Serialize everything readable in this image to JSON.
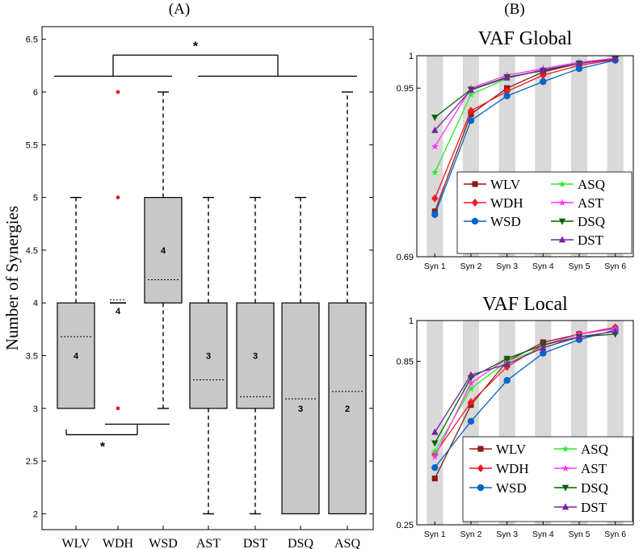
{
  "panel_labels": {
    "a": "(A)",
    "b": "(B)"
  },
  "chart_data": [
    {
      "type": "box",
      "title": "(A)",
      "xlabel": "",
      "ylabel": "Number of Synergies",
      "ylim": [
        1.85,
        6.62
      ],
      "yticks": [
        "2",
        "2.5",
        "3",
        "3.5",
        "4",
        "4.5",
        "5",
        "5.5",
        "6",
        "6.5"
      ],
      "categories": [
        "WLV",
        "WDH",
        "WSD",
        "AST",
        "DST",
        "DSQ",
        "ASQ"
      ],
      "boxes": [
        {
          "q1": 3,
          "q3": 4,
          "whisker_low": 3,
          "whisker_high": 5,
          "mean": 3.68,
          "median_label": "4",
          "outliers": []
        },
        {
          "q1": 4,
          "q3": 4,
          "whisker_low": 4,
          "whisker_high": 4,
          "mean": 4.03,
          "median_label": "4",
          "outliers": [
            6,
            5,
            3
          ]
        },
        {
          "q1": 4,
          "q3": 5,
          "whisker_low": 3,
          "whisker_high": 6,
          "mean": 4.22,
          "median_label": "4",
          "outliers": []
        },
        {
          "q1": 3,
          "q3": 4,
          "whisker_low": 2,
          "whisker_high": 5,
          "mean": 3.27,
          "median_label": "3",
          "outliers": []
        },
        {
          "q1": 3,
          "q3": 4,
          "whisker_low": 2,
          "whisker_high": 5,
          "mean": 3.11,
          "median_label": "3",
          "outliers": []
        },
        {
          "q1": 2,
          "q3": 4,
          "whisker_low": 2,
          "whisker_high": 5,
          "mean": 3.09,
          "median_label": "3",
          "outliers": []
        },
        {
          "q1": 2,
          "q3": 4,
          "whisker_low": 2,
          "whisker_high": 6,
          "mean": 3.16,
          "median_label": "2",
          "outliers": []
        }
      ],
      "significance": [
        {
          "label": "*",
          "groups_a": [
            "WLV",
            "WDH",
            "WSD"
          ],
          "groups_b": [
            "AST",
            "DST",
            "DSQ",
            "ASQ"
          ],
          "level": 6.35
        },
        {
          "label": "*",
          "groups_a": [
            "WLV",
            "WDH"
          ],
          "groups_b": [
            "WSD"
          ],
          "level": 2.75
        }
      ]
    },
    {
      "type": "line",
      "title": "VAF Global",
      "ylim": [
        0.69,
        1.0
      ],
      "yticks": [
        "0.69",
        "0.95",
        "1"
      ],
      "categories": [
        "Syn 1",
        "Syn 2",
        "Syn 3",
        "Syn 4",
        "Syn 5",
        "Syn 6"
      ],
      "series": [
        {
          "name": "WLV",
          "values": [
            0.76,
            0.91,
            0.95,
            0.975,
            0.988,
            0.995
          ]
        },
        {
          "name": "WDH",
          "values": [
            0.78,
            0.915,
            0.945,
            0.97,
            0.985,
            0.994
          ]
        },
        {
          "name": "WSD",
          "values": [
            0.755,
            0.9,
            0.938,
            0.96,
            0.98,
            0.993
          ]
        },
        {
          "name": "ASQ",
          "values": [
            0.82,
            0.94,
            0.965,
            0.978,
            0.989,
            0.995
          ]
        },
        {
          "name": "AST",
          "values": [
            0.86,
            0.95,
            0.97,
            0.98,
            0.99,
            0.996
          ]
        },
        {
          "name": "DSQ",
          "values": [
            0.905,
            0.948,
            0.967,
            0.977,
            0.988,
            0.995
          ]
        },
        {
          "name": "DST",
          "values": [
            0.885,
            0.947,
            0.966,
            0.978,
            0.988,
            0.995
          ]
        }
      ]
    },
    {
      "type": "line",
      "title": "VAF Local",
      "ylim": [
        0.25,
        1.0
      ],
      "yticks": [
        "0.25",
        "0.85",
        "1"
      ],
      "categories": [
        "Syn 1",
        "Syn 2",
        "Syn 3",
        "Syn 4",
        "Syn 5",
        "Syn 6"
      ],
      "series": [
        {
          "name": "WLV",
          "values": [
            0.42,
            0.69,
            0.85,
            0.92,
            0.95,
            0.97
          ]
        },
        {
          "name": "WDH",
          "values": [
            0.51,
            0.7,
            0.83,
            0.91,
            0.95,
            0.975
          ]
        },
        {
          "name": "WSD",
          "values": [
            0.46,
            0.63,
            0.78,
            0.88,
            0.93,
            0.965
          ]
        },
        {
          "name": "ASQ",
          "values": [
            0.52,
            0.75,
            0.85,
            0.9,
            0.94,
            0.96
          ]
        },
        {
          "name": "AST",
          "values": [
            0.5,
            0.77,
            0.86,
            0.91,
            0.95,
            0.97
          ]
        },
        {
          "name": "DSQ",
          "values": [
            0.55,
            0.79,
            0.86,
            0.91,
            0.94,
            0.95
          ]
        },
        {
          "name": "DST",
          "values": [
            0.59,
            0.8,
            0.84,
            0.9,
            0.94,
            0.96
          ]
        }
      ]
    }
  ],
  "series_styles": {
    "WLV": {
      "color": "#8b1a1a",
      "marker": "square"
    },
    "WDH": {
      "color": "#ee1c1c",
      "marker": "diamond"
    },
    "WSD": {
      "color": "#0064c8",
      "marker": "circle"
    },
    "ASQ": {
      "color": "#2ee82e",
      "marker": "star"
    },
    "AST": {
      "color": "#ff33ff",
      "marker": "star"
    },
    "DSQ": {
      "color": "#006400",
      "marker": "triangle-down"
    },
    "DST": {
      "color": "#7b1fa2",
      "marker": "triangle-up"
    }
  },
  "legend_order": [
    [
      "WLV",
      "ASQ"
    ],
    [
      "WDH",
      "AST"
    ],
    [
      "WSD",
      "DSQ"
    ],
    [
      "",
      "DST"
    ]
  ],
  "colors": {
    "box_fill": "#c8c8c8",
    "stripe": "#d9d9d9",
    "outlier": "#e02020"
  }
}
